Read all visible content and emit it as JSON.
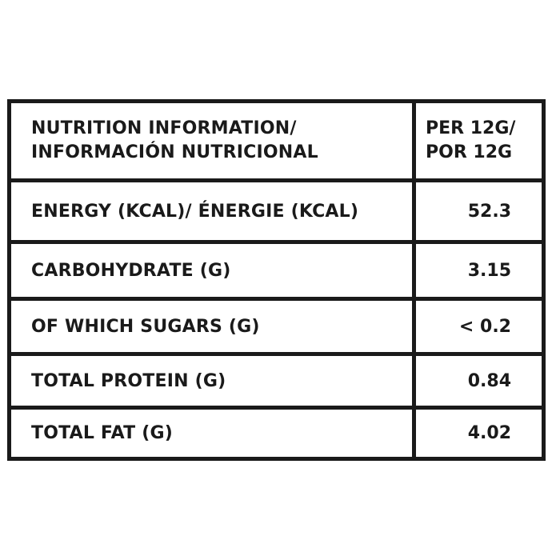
{
  "table": {
    "header": {
      "label_line1": "NUTRITION INFORMATION/",
      "label_line2": "INFORMACIÓN NUTRICIONAL",
      "value_line1": "PER 12G/",
      "value_line2": "POR 12G"
    },
    "rows": [
      {
        "label": "ENERGY (KCAL)/ ÉNERGIE (KCAL)",
        "value": "52.3"
      },
      {
        "label": "CARBOHYDRATE (G)",
        "value": "3.15"
      },
      {
        "label": "OF WHICH SUGARS (G)",
        "value": "< 0.2"
      },
      {
        "label": "TOTAL PROTEIN (G)",
        "value": "0.84"
      },
      {
        "label": "TOTAL FAT (G)",
        "value": "4.02"
      }
    ]
  }
}
